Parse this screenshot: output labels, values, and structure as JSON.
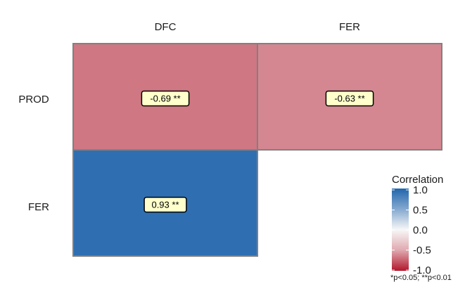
{
  "chart_data": {
    "type": "heatmap",
    "x_categories": [
      "DFC",
      "FER"
    ],
    "y_categories": [
      "PROD",
      "FER"
    ],
    "cells": [
      {
        "row": "PROD",
        "col": "DFC",
        "value": -0.69,
        "label": "-0.69 **"
      },
      {
        "row": "PROD",
        "col": "FER",
        "value": -0.63,
        "label": "-0.63 **"
      },
      {
        "row": "FER",
        "col": "DFC",
        "value": 0.93,
        "label": "0.93 **"
      }
    ],
    "colorbar": {
      "title": "Correlation",
      "range": [
        -1,
        1
      ],
      "ticks": [
        "1.0",
        "0.5",
        "0.0",
        "-0.5",
        "-1.0"
      ],
      "colors": {
        "low": "#b2182b",
        "mid": "#f7f7f7",
        "high": "#2166ac"
      }
    },
    "footnote": "*p<0.05; **p<0.01",
    "cell_border_color": "#808080",
    "label_box_fill": "#ffffcc"
  }
}
